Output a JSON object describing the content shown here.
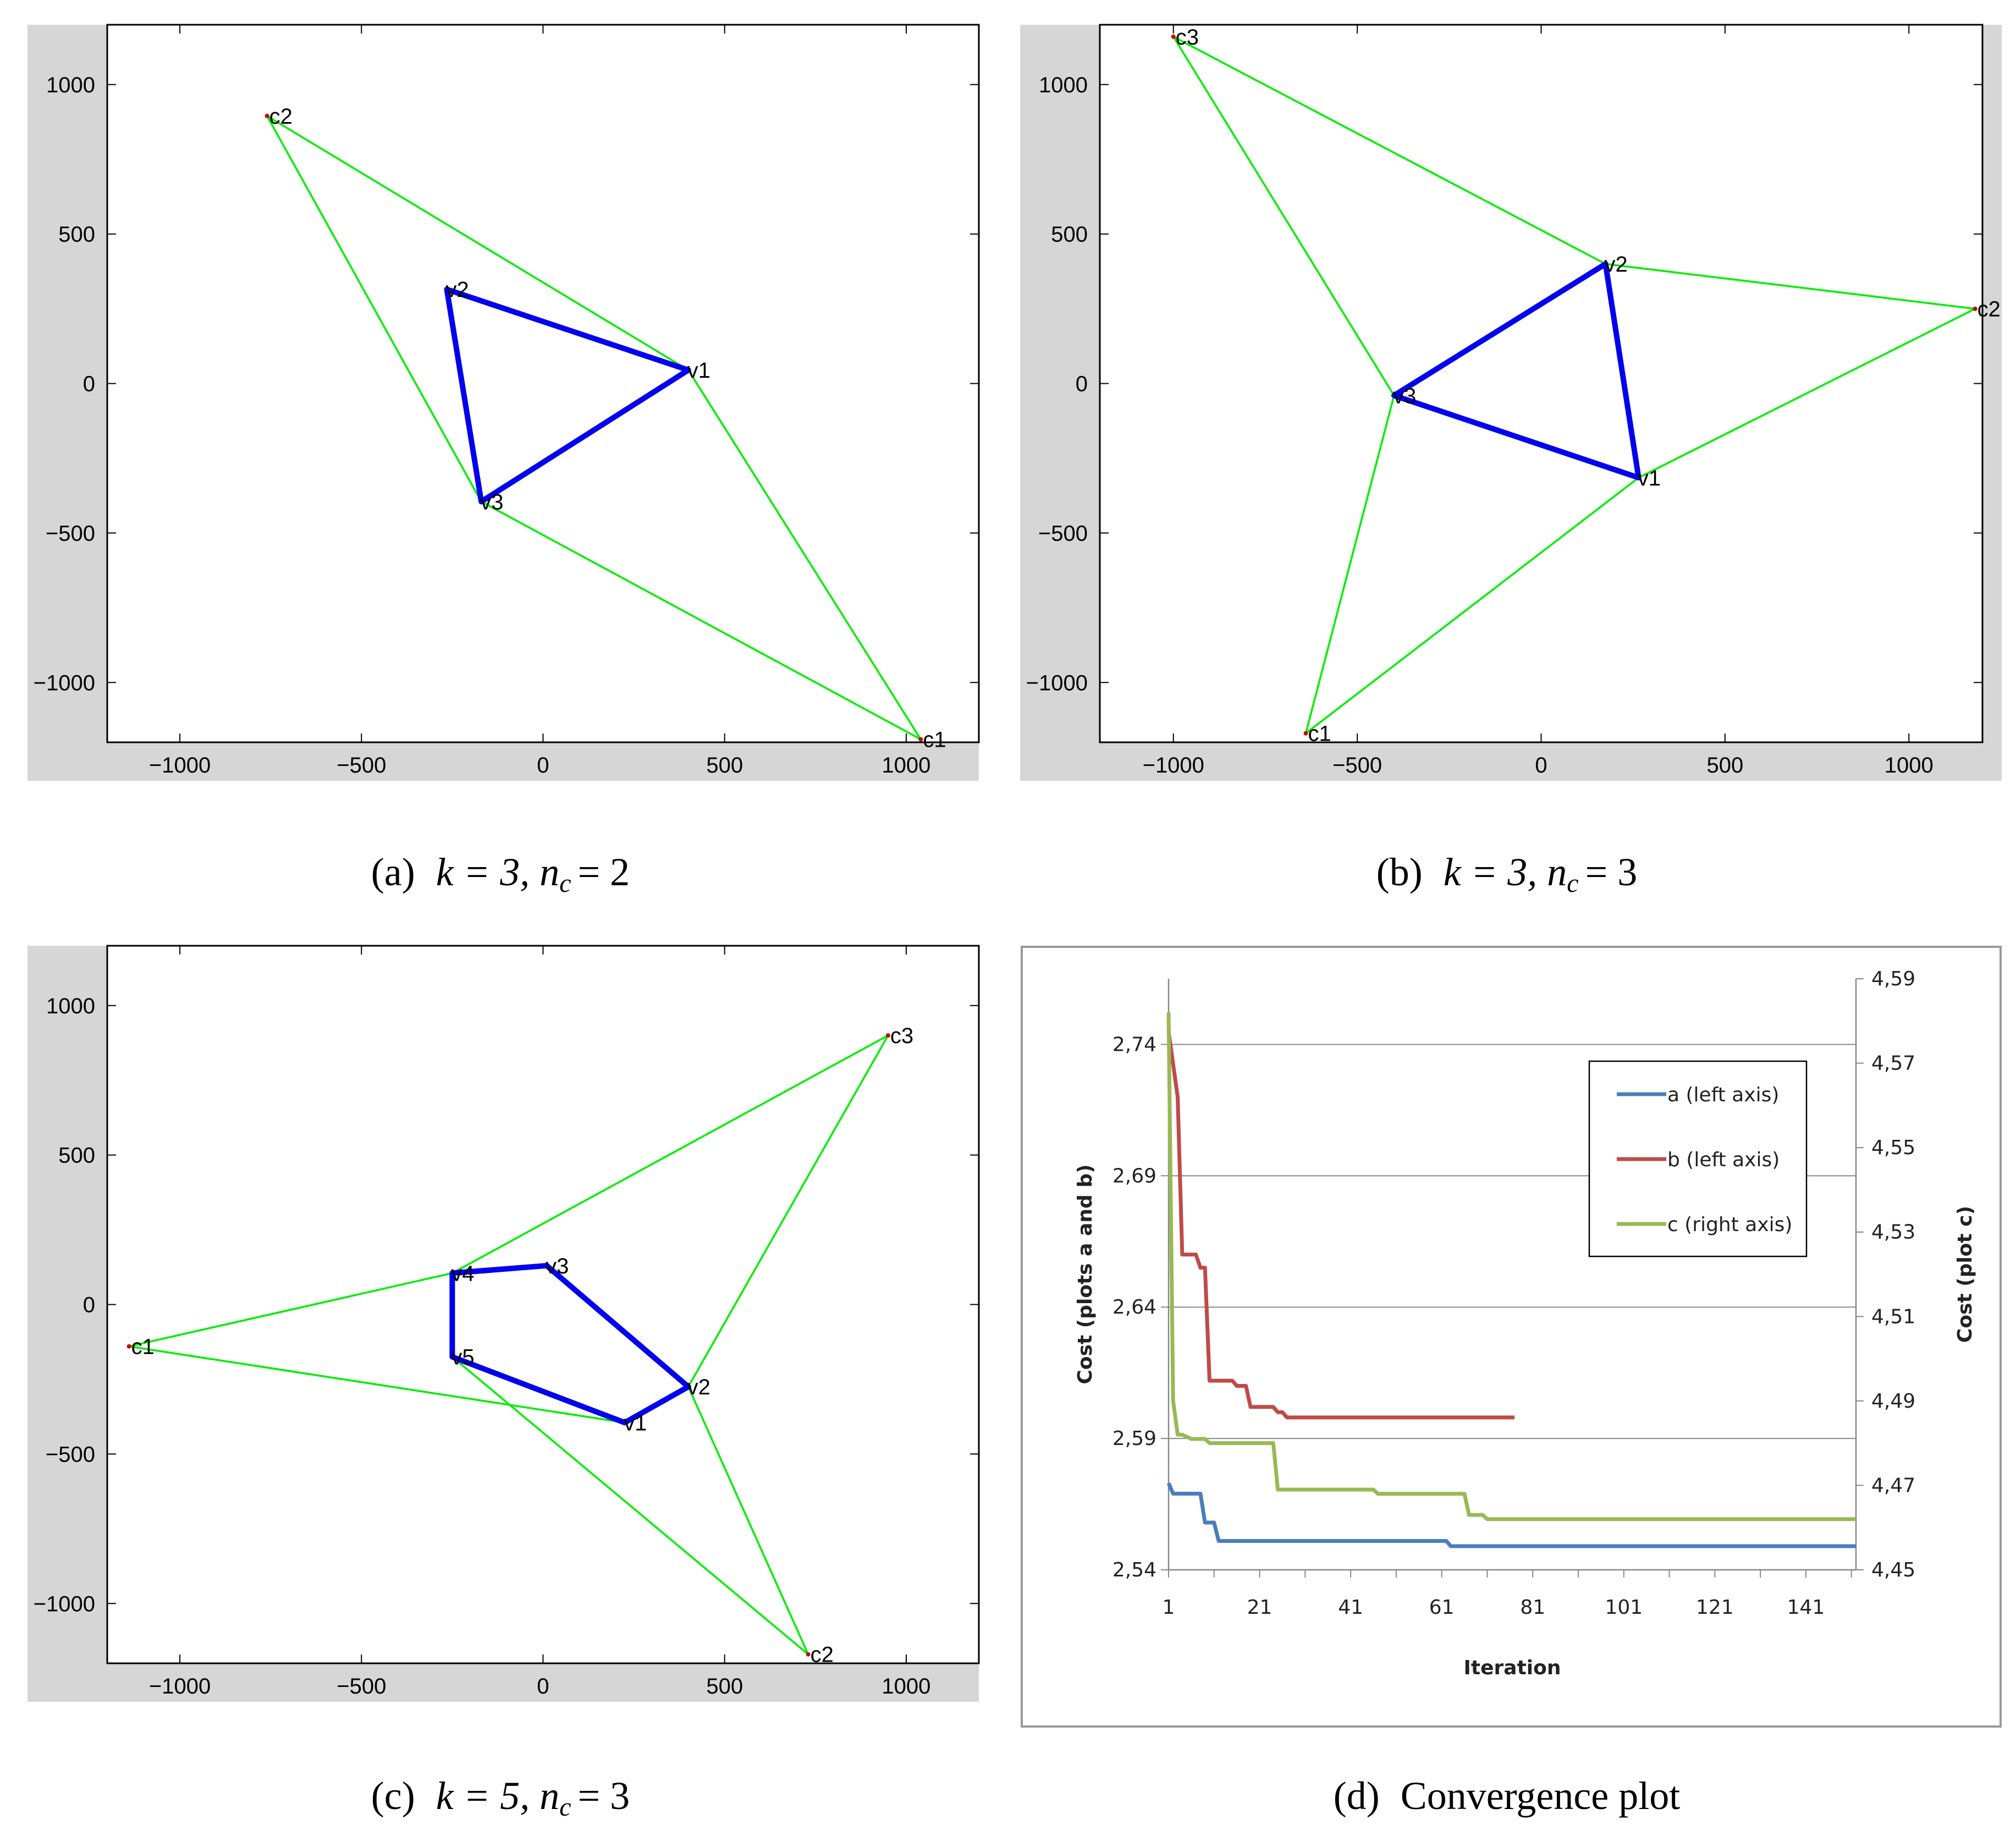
{
  "chart_data": [
    {
      "type": "line",
      "subplot": "a",
      "caption": "(a)  k = 3, n_c = 2",
      "xlim": [
        -1200,
        1200
      ],
      "ylim": [
        -1200,
        1200
      ],
      "xticks": [
        -1000,
        -500,
        0,
        500,
        1000
      ],
      "yticks": [
        -1000,
        -500,
        0,
        500,
        1000
      ],
      "xtick_labels": [
        "−1000",
        "−500",
        "0",
        "500",
        "1000"
      ],
      "ytick_labels": [
        "−1000",
        "−500",
        "0",
        "500",
        "1000"
      ],
      "polygon": [
        {
          "name": "v1",
          "x": 400,
          "y": 45
        },
        {
          "name": "v2",
          "x": -265,
          "y": 315
        },
        {
          "name": "v3",
          "x": -170,
          "y": -395
        }
      ],
      "clusters": [
        {
          "name": "c1",
          "x": 1040,
          "y": -1190
        },
        {
          "name": "c2",
          "x": -760,
          "y": 895
        }
      ],
      "connections": [
        [
          "c2",
          "v1"
        ],
        [
          "c2",
          "v3"
        ],
        [
          "c1",
          "v1"
        ],
        [
          "c1",
          "v3"
        ]
      ]
    },
    {
      "type": "line",
      "subplot": "b",
      "caption": "(b)  k = 3, n_c = 3",
      "xlim": [
        -1200,
        1200
      ],
      "ylim": [
        -1200,
        1200
      ],
      "xticks": [
        -1000,
        -500,
        0,
        500,
        1000
      ],
      "yticks": [
        -1000,
        -500,
        0,
        500,
        1000
      ],
      "xtick_labels": [
        "−1000",
        "−500",
        "0",
        "500",
        "1000"
      ],
      "ytick_labels": [
        "−1000",
        "−500",
        "0",
        "500",
        "1000"
      ],
      "polygon": [
        {
          "name": "v1",
          "x": 265,
          "y": -315
        },
        {
          "name": "v2",
          "x": 175,
          "y": 400
        },
        {
          "name": "v3",
          "x": -400,
          "y": -40
        }
      ],
      "clusters": [
        {
          "name": "c1",
          "x": -640,
          "y": -1170
        },
        {
          "name": "c2",
          "x": 1180,
          "y": 250
        },
        {
          "name": "c3",
          "x": -1000,
          "y": 1160
        }
      ],
      "connections": [
        [
          "c3",
          "v2"
        ],
        [
          "c3",
          "v3"
        ],
        [
          "c2",
          "v2"
        ],
        [
          "c2",
          "v1"
        ],
        [
          "c1",
          "v1"
        ],
        [
          "c1",
          "v3"
        ]
      ]
    },
    {
      "type": "line",
      "subplot": "c",
      "caption": "(c)  k = 5, n_c = 3",
      "xlim": [
        -1200,
        1200
      ],
      "ylim": [
        -1200,
        1200
      ],
      "xticks": [
        -1000,
        -500,
        0,
        500,
        1000
      ],
      "yticks": [
        -1000,
        -500,
        0,
        500,
        1000
      ],
      "xtick_labels": [
        "−1000",
        "−500",
        "0",
        "500",
        "1000"
      ],
      "ytick_labels": [
        "−1000",
        "−500",
        "0",
        "500",
        "1000"
      ],
      "polygon": [
        {
          "name": "v1",
          "x": 225,
          "y": -395
        },
        {
          "name": "v2",
          "x": 400,
          "y": -275
        },
        {
          "name": "v3",
          "x": 10,
          "y": 130
        },
        {
          "name": "v4",
          "x": -250,
          "y": 105
        },
        {
          "name": "v5",
          "x": -250,
          "y": -175
        }
      ],
      "clusters": [
        {
          "name": "c1",
          "x": -1140,
          "y": -140
        },
        {
          "name": "c2",
          "x": 730,
          "y": -1170
        },
        {
          "name": "c3",
          "x": 950,
          "y": 900
        }
      ],
      "connections": [
        [
          "c1",
          "v4"
        ],
        [
          "c1",
          "v1"
        ],
        [
          "c3",
          "v4"
        ],
        [
          "c3",
          "v2"
        ],
        [
          "c2",
          "v5"
        ],
        [
          "c2",
          "v2"
        ]
      ]
    },
    {
      "type": "line",
      "subplot": "d",
      "caption": "(d)  Convergence plot",
      "xlabel": "Iteration",
      "ylabel": "Cost (plots a and b)",
      "y2label": "Cost (plot c)",
      "xlim": [
        1,
        152
      ],
      "ylim": [
        2.54,
        2.765
      ],
      "y2lim": [
        4.45,
        4.59
      ],
      "xticks": [
        1,
        21,
        41,
        61,
        81,
        101,
        121,
        141
      ],
      "yticks": [
        2.54,
        2.59,
        2.64,
        2.69,
        2.74
      ],
      "ytick_labels": [
        "2,54",
        "2,59",
        "2,64",
        "2,69",
        "2,74"
      ],
      "y2ticks": [
        4.45,
        4.47,
        4.49,
        4.51,
        4.53,
        4.55,
        4.57,
        4.59
      ],
      "y2tick_labels": [
        "4,45",
        "4,47",
        "4,49",
        "4,51",
        "4,53",
        "4,55",
        "4,57",
        "4,59"
      ],
      "series": [
        {
          "name": "a (left axis)",
          "axis": "left",
          "color": "#4a7ebb",
          "x": [
            1,
            2,
            3,
            8,
            9,
            10,
            11,
            12,
            13,
            62,
            63,
            152
          ],
          "y": [
            2.573,
            2.569,
            2.569,
            2.569,
            2.558,
            2.558,
            2.558,
            2.551,
            2.551,
            2.551,
            2.549,
            2.549
          ]
        },
        {
          "name": "b (left axis)",
          "axis": "left",
          "color": "#be4b48",
          "x": [
            1,
            3,
            4,
            5,
            7,
            8,
            9,
            10,
            11,
            15,
            16,
            18,
            19,
            24,
            25,
            26,
            27,
            77
          ],
          "y": [
            2.745,
            2.72,
            2.66,
            2.66,
            2.66,
            2.655,
            2.655,
            2.612,
            2.612,
            2.612,
            2.61,
            2.61,
            2.602,
            2.602,
            2.6,
            2.6,
            2.598,
            2.598
          ]
        },
        {
          "name": "c (right axis)",
          "axis": "right",
          "color": "#98b954",
          "x": [
            1,
            2,
            3,
            4,
            6,
            9,
            10,
            24,
            25,
            46,
            47,
            66,
            67,
            70,
            71,
            152
          ],
          "y": [
            4.582,
            4.49,
            4.482,
            4.482,
            4.481,
            4.481,
            4.48,
            4.48,
            4.469,
            4.469,
            4.468,
            4.468,
            4.463,
            4.463,
            4.462,
            4.462
          ]
        }
      ]
    }
  ],
  "colors": {
    "polygon": "#0000ee",
    "connection": "#00ee00",
    "cluster_point": "#cc0000",
    "frame_bg": "#d6d6d6",
    "grid": "#888888"
  },
  "captions": {
    "a": {
      "prefix": "(a)",
      "k": "k = 3,",
      "n": "n",
      "sub": "c",
      "eq": "= 2"
    },
    "b": {
      "prefix": "(b)",
      "k": "k = 3,",
      "n": "n",
      "sub": "c",
      "eq": "= 3"
    },
    "c": {
      "prefix": "(c)",
      "k": "k = 5,",
      "n": "n",
      "sub": "c",
      "eq": "= 3"
    },
    "d": {
      "prefix": "(d)",
      "text": "Convergence plot"
    }
  }
}
